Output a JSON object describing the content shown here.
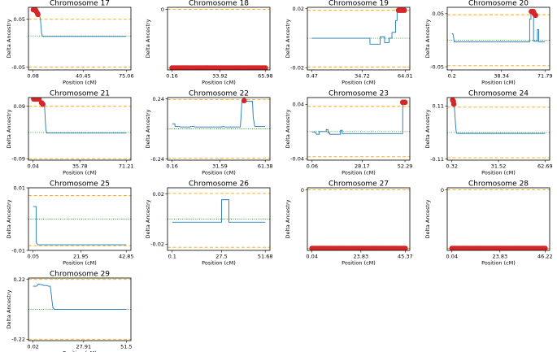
{
  "figure": {
    "xlabel": "Position (cM)",
    "ylabel": "Delta Ancestry",
    "colors": {
      "series": "#1f77b4",
      "upper_threshold": "#ffa500",
      "lower_threshold": "#ffa500",
      "mean": "#2ca02c",
      "significant": "#d62728"
    }
  },
  "chart_data": [
    {
      "type": "line",
      "title": "Chromosome 17",
      "xticks": [
        0.08,
        40.45,
        75.06
      ],
      "xtick_labels": [
        "0.08",
        "40.45",
        "75.06"
      ],
      "yticks": [
        0.05,
        -0.05
      ],
      "ytick_labels": [
        "0.05",
        "-0.05"
      ],
      "xlim": [
        -3.6,
        78.8
      ],
      "ylim": [
        -0.056,
        0.075
      ],
      "upper": 0.05,
      "lower": -0.05,
      "mean": 0.015,
      "x": [
        0.08,
        1.0,
        2.0,
        3.0,
        4.0,
        5.0,
        6.0,
        6.5,
        7.0,
        7.5,
        8.0,
        75.06
      ],
      "y": [
        0.07,
        0.07,
        0.07,
        0.07,
        0.062,
        0.06,
        0.05,
        0.035,
        0.02,
        0.016,
        0.014,
        0.014
      ],
      "highlights": [
        [
          0.3,
          0.07
        ],
        [
          1.0,
          0.07
        ],
        [
          2.0,
          0.07
        ],
        [
          2.5,
          0.067
        ],
        [
          3.5,
          0.063
        ],
        [
          4.0,
          0.06
        ]
      ]
    },
    {
      "type": "line",
      "title": "Chromosome 18",
      "xticks": [
        0.16,
        33.92,
        65.98
      ],
      "xtick_labels": [
        "0.16",
        "33.92",
        "65.98"
      ],
      "yticks": [
        0.0
      ],
      "ytick_labels": [
        "0"
      ],
      "xlim": [
        -3.0,
        69.2
      ],
      "ylim": [
        -0.06,
        0.002
      ],
      "upper": 0.0,
      "lower": -0.058,
      "mean": null,
      "x": [],
      "y": [],
      "highlight_band": {
        "x_start": 0.16,
        "x_end": 65.98,
        "y": -0.058
      }
    },
    {
      "type": "line",
      "title": "Chromosome 19",
      "xticks": [
        0.47,
        34.72,
        64.01
      ],
      "xtick_labels": [
        "0.47",
        "34.72",
        "64.01"
      ],
      "yticks": [
        0.02,
        -0.02
      ],
      "ytick_labels": [
        "0.02",
        "-0.02"
      ],
      "xlim": [
        -2.7,
        67.2
      ],
      "ylim": [
        -0.0215,
        0.021
      ],
      "upper": 0.019,
      "lower": -0.0195,
      "mean": 0.0,
      "x": [
        0.47,
        40.0,
        40.0,
        47.0,
        47.0,
        50.0,
        50.0,
        53.0,
        53.0,
        55.0,
        55.0,
        57.5,
        57.5,
        58.5,
        58.5,
        64.01
      ],
      "y": [
        0.0,
        0.0,
        -0.004,
        -0.004,
        0.001,
        0.001,
        -0.003,
        -0.003,
        0.0,
        0.0,
        0.004,
        0.004,
        0.012,
        0.012,
        0.019,
        0.019
      ],
      "highlights": [
        [
          59.5,
          0.019
        ],
        [
          60.5,
          0.019
        ],
        [
          61.5,
          0.019
        ],
        [
          62.5,
          0.019
        ],
        [
          63.5,
          0.019
        ]
      ]
    },
    {
      "type": "line",
      "title": "Chromosome 20",
      "xticks": [
        0.2,
        38.34,
        71.79
      ],
      "xtick_labels": [
        "0.2",
        "38.34",
        "71.79"
      ],
      "yticks": [
        0.05,
        -0.05
      ],
      "ytick_labels": [
        "0.05",
        "-0.05"
      ],
      "xlim": [
        -3.4,
        75.4
      ],
      "ylim": [
        -0.056,
        0.062
      ],
      "upper": 0.048,
      "lower": -0.048,
      "mean": 0.0,
      "x": [
        0.2,
        1.0,
        1.5,
        2.0,
        60.0,
        60.0,
        61.0,
        61.0,
        62.0,
        62.0,
        63.0,
        63.0,
        66.0,
        66.0,
        67.0,
        67.0,
        71.79
      ],
      "y": [
        0.012,
        0.012,
        0.006,
        -0.003,
        -0.003,
        0.04,
        0.04,
        0.054,
        0.054,
        0.052,
        0.052,
        -0.002,
        -0.002,
        0.02,
        0.02,
        -0.003,
        -0.003
      ],
      "highlights": [
        [
          61.3,
          0.054
        ],
        [
          62.0,
          0.054
        ],
        [
          62.8,
          0.054
        ],
        [
          63.5,
          0.05
        ],
        [
          64.5,
          0.047
        ]
      ]
    },
    {
      "type": "line",
      "title": "Chromosome 21",
      "xticks": [
        0.04,
        35.78,
        71.21
      ],
      "xtick_labels": [
        "0.04",
        "35.78",
        "71.21"
      ],
      "yticks": [
        0.09,
        -0.09
      ],
      "ytick_labels": [
        "0.09",
        "-0.09"
      ],
      "xlim": [
        -3.5,
        74.8
      ],
      "ylim": [
        -0.095,
        0.12
      ],
      "upper": 0.09,
      "lower": -0.09,
      "mean": 0.0,
      "x": [
        0.04,
        5.0,
        6.0,
        7.0,
        8.0,
        8.8,
        9.3,
        9.8,
        10.5,
        71.21
      ],
      "y": [
        0.115,
        0.115,
        0.11,
        0.1,
        0.094,
        0.09,
        0.05,
        0.01,
        -0.002,
        -0.002
      ],
      "highlights": [
        [
          0.5,
          0.115
        ],
        [
          1.5,
          0.115
        ],
        [
          2.5,
          0.115
        ],
        [
          3.5,
          0.115
        ],
        [
          4.5,
          0.115
        ],
        [
          6.5,
          0.102
        ],
        [
          7.5,
          0.097
        ]
      ]
    },
    {
      "type": "line",
      "title": "Chromosome 22",
      "xticks": [
        0.16,
        31.59,
        61.38
      ],
      "xtick_labels": [
        "0.16",
        "31.59",
        "61.38"
      ],
      "yticks": [
        0.24,
        -0.24
      ],
      "ytick_labels": [
        "0.24",
        "-0.24"
      ],
      "xlim": [
        -2.9,
        64.5
      ],
      "ylim": [
        -0.25,
        0.25
      ],
      "upper": 0.235,
      "lower": -0.235,
      "mean": 0.0,
      "x": [
        0.16,
        2.0,
        2.0,
        5.0,
        5.5,
        12.0,
        12.5,
        14.5,
        15.0,
        33.0,
        33.0,
        34.0,
        35.0,
        45.0,
        45.5,
        46.0,
        53.0,
        53.5,
        54.5,
        61.38
      ],
      "y": [
        0.04,
        0.04,
        0.02,
        0.02,
        0.015,
        0.015,
        0.02,
        0.02,
        0.015,
        0.015,
        0.018,
        0.018,
        0.015,
        0.015,
        0.1,
        0.22,
        0.22,
        0.09,
        0.02,
        0.02
      ],
      "highlights": [
        [
          47.5,
          0.225
        ]
      ]
    },
    {
      "type": "line",
      "title": "Chromosome 23",
      "xticks": [
        0.06,
        28.17,
        52.29
      ],
      "xtick_labels": [
        "0.06",
        "28.17",
        "52.29"
      ],
      "yticks": [
        0.04,
        -0.04
      ],
      "ytick_labels": [
        "0.04",
        "-0.04"
      ],
      "xlim": [
        -2.6,
        55.0
      ],
      "ylim": [
        -0.042,
        0.05
      ],
      "upper": 0.037,
      "lower": -0.037,
      "mean": 0.0,
      "x": [
        0.06,
        2.0,
        2.5,
        4.0,
        4.0,
        8.0,
        8.0,
        9.0,
        9.0,
        10.0,
        10.0,
        16.0,
        16.0,
        17.0,
        17.0,
        51.0,
        51.0,
        52.29
      ],
      "y": [
        -0.001,
        -0.001,
        -0.004,
        -0.004,
        0.0,
        0.0,
        0.003,
        0.003,
        -0.002,
        -0.002,
        -0.004,
        -0.004,
        0.002,
        0.002,
        -0.003,
        -0.003,
        0.043,
        0.043
      ],
      "highlights": [
        [
          51.0,
          0.043
        ],
        [
          51.7,
          0.043
        ],
        [
          52.3,
          0.043
        ]
      ]
    },
    {
      "type": "line",
      "title": "Chromosome 24",
      "xticks": [
        0.32,
        31.52,
        62.69
      ],
      "xtick_labels": [
        "0.32",
        "31.52",
        "62.69"
      ],
      "yticks": [
        0.11,
        -0.11
      ],
      "ytick_labels": [
        "0.11",
        "-0.11"
      ],
      "xlim": [
        -2.8,
        65.8
      ],
      "ylim": [
        -0.115,
        0.145
      ],
      "upper": 0.105,
      "lower": -0.105,
      "mean": 0.0,
      "x": [
        0.32,
        1.2,
        1.8,
        2.3,
        2.8,
        3.3,
        3.6,
        62.69
      ],
      "y": [
        0.135,
        0.13,
        0.12,
        0.08,
        0.03,
        0.0,
        -0.004,
        -0.004
      ],
      "highlights": [
        [
          0.8,
          0.135
        ],
        [
          1.3,
          0.13
        ],
        [
          1.6,
          0.118
        ]
      ]
    },
    {
      "type": "line",
      "title": "Chromosome 25",
      "xticks": [
        0.05,
        21.95,
        42.85
      ],
      "xtick_labels": [
        "0.05",
        "21.95",
        "42.85"
      ],
      "yticks": [
        0.01,
        -0.01
      ],
      "ytick_labels": [
        "0.01",
        "-0.01"
      ],
      "xlim": [
        -2.1,
        45.0
      ],
      "ylim": [
        -0.01,
        0.01
      ],
      "upper": 0.0075,
      "lower": -0.0085,
      "mean": 0.0,
      "x": [
        0.05,
        1.5,
        1.5,
        2.2,
        42.85
      ],
      "y": [
        0.004,
        0.004,
        -0.0075,
        -0.0082,
        -0.0082
      ],
      "highlights": []
    },
    {
      "type": "line",
      "title": "Chromosome 26",
      "xticks": [
        0.1,
        27.5,
        51.68
      ],
      "xtick_labels": [
        "0.1",
        "27.5",
        "51.68"
      ],
      "yticks": [
        0.02,
        -0.02
      ],
      "ytick_labels": [
        "0.02",
        "-0.02"
      ],
      "xlim": [
        -2.5,
        54.3
      ],
      "ylim": [
        -0.025,
        0.025
      ],
      "upper": 0.0205,
      "lower": -0.0225,
      "mean": 0.0,
      "x": [
        0.1,
        27.5,
        27.5,
        31.5,
        31.5,
        51.68
      ],
      "y": [
        -0.0025,
        -0.0025,
        0.0155,
        0.0155,
        -0.0025,
        -0.0025
      ],
      "highlights": []
    },
    {
      "type": "line",
      "title": "Chromosome 27",
      "xticks": [
        0.04,
        23.83,
        45.37
      ],
      "xtick_labels": [
        "0.04",
        "23.83",
        "45.37"
      ],
      "yticks": [
        0.0
      ],
      "ytick_labels": [
        "0"
      ],
      "xlim": [
        -2.2,
        47.6
      ],
      "ylim": [
        -0.06,
        0.002
      ],
      "upper": 0.0,
      "lower": -0.058,
      "mean": null,
      "x": [],
      "y": [],
      "highlight_band": {
        "x_start": 0.04,
        "x_end": 45.37,
        "y": -0.058
      }
    },
    {
      "type": "line",
      "title": "Chromosome 28",
      "xticks": [
        0.04,
        23.83,
        46.22
      ],
      "xtick_labels": [
        "0.04",
        "23.83",
        "46.22"
      ],
      "yticks": [
        0.0
      ],
      "ytick_labels": [
        "0"
      ],
      "xlim": [
        -2.3,
        48.5
      ],
      "ylim": [
        -0.06,
        0.002
      ],
      "upper": 0.0,
      "lower": -0.058,
      "mean": null,
      "x": [],
      "y": [],
      "highlight_band": {
        "x_start": 0.04,
        "x_end": 46.22,
        "y": -0.058
      }
    },
    {
      "type": "line",
      "title": "Chromosome 29",
      "xticks": [
        0.02,
        27.91,
        51.5
      ],
      "xtick_labels": [
        "0.02",
        "27.91",
        "51.5"
      ],
      "yticks": [
        0.22,
        -0.22
      ],
      "ytick_labels": [
        "0.22",
        "-0.22"
      ],
      "xlim": [
        -2.5,
        54.0
      ],
      "ylim": [
        -0.23,
        0.23
      ],
      "upper": 0.22,
      "lower": -0.22,
      "mean": 0.0,
      "x": [
        0.02,
        2.0,
        3.0,
        5.0,
        6.0,
        7.5,
        8.5,
        9.5,
        10.0,
        10.5,
        11.0,
        12.0,
        51.5
      ],
      "y": [
        0.17,
        0.17,
        0.185,
        0.18,
        0.175,
        0.175,
        0.17,
        0.17,
        0.12,
        0.06,
        0.01,
        0.0,
        0.0
      ],
      "highlights": []
    }
  ]
}
